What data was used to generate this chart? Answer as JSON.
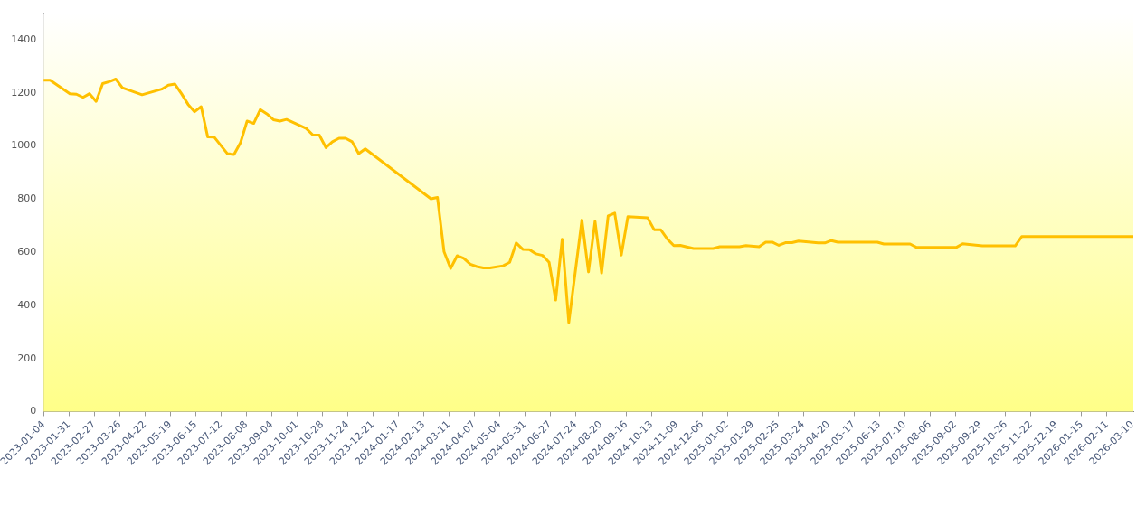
{
  "chart_data": {
    "type": "line",
    "x": [
      "2023-01-04",
      "2023-01-11",
      "2023-02-01",
      "2023-02-08",
      "2023-02-15",
      "2023-02-22",
      "2023-03-01",
      "2023-03-08",
      "2023-03-15",
      "2023-03-22",
      "2023-03-29",
      "2023-04-19",
      "2023-05-10",
      "2023-05-17",
      "2023-05-24",
      "2023-05-31",
      "2023-06-07",
      "2023-06-14",
      "2023-06-21",
      "2023-06-28",
      "2023-07-05",
      "2023-07-19",
      "2023-07-26",
      "2023-08-02",
      "2023-08-09",
      "2023-08-16",
      "2023-08-23",
      "2023-08-30",
      "2023-09-06",
      "2023-09-13",
      "2023-09-20",
      "2023-10-11",
      "2023-10-18",
      "2023-10-25",
      "2023-11-01",
      "2023-11-08",
      "2023-11-15",
      "2023-11-22",
      "2023-11-29",
      "2023-12-06",
      "2023-12-13",
      "2024-02-21",
      "2024-02-28",
      "2024-03-06",
      "2024-03-13",
      "2024-03-20",
      "2024-03-27",
      "2024-04-03",
      "2024-04-10",
      "2024-04-17",
      "2024-04-24",
      "2024-05-08",
      "2024-05-15",
      "2024-05-22",
      "2024-05-29",
      "2024-06-05",
      "2024-06-12",
      "2024-06-19",
      "2024-06-26",
      "2024-07-03",
      "2024-07-10",
      "2024-07-17",
      "2024-07-31",
      "2024-08-07",
      "2024-08-14",
      "2024-08-21",
      "2024-08-28",
      "2024-09-04",
      "2024-09-11",
      "2024-09-18",
      "2024-10-09",
      "2024-10-16",
      "2024-10-23",
      "2024-10-30",
      "2024-11-06",
      "2024-11-13",
      "2024-11-27",
      "2024-12-18",
      "2024-12-25",
      "2025-01-15",
      "2025-01-22",
      "2025-02-05",
      "2025-02-12",
      "2025-02-19",
      "2025-02-26",
      "2025-03-05",
      "2025-03-12",
      "2025-03-19",
      "2025-04-09",
      "2025-04-16",
      "2025-04-23",
      "2025-04-30",
      "2025-06-11",
      "2025-06-18",
      "2025-07-16",
      "2025-07-23",
      "2025-09-03",
      "2025-09-10",
      "2025-10-01",
      "2025-11-05",
      "2025-11-12",
      "2026-03-11"
    ],
    "series": [
      {
        "color": "#ffc000",
        "values": [
          1248,
          1248,
          1197,
          1195,
          1183,
          1197,
          1168,
          1235,
          1242,
          1252,
          1219,
          1193,
          1214,
          1229,
          1233,
          1197,
          1157,
          1129,
          1148,
          1034,
          1033,
          971,
          968,
          1013,
          1094,
          1085,
          1137,
          1121,
          1099,
          1094,
          1100,
          1066,
          1042,
          1041,
          994,
          1016,
          1029,
          1029,
          1016,
          971,
          989,
          801,
          806,
          602,
          539,
          587,
          577,
          555,
          546,
          541,
          541,
          549,
          562,
          635,
          611,
          610,
          594,
          588,
          562,
          420,
          649,
          335,
          721,
          526,
          716,
          522,
          737,
          747,
          589,
          734,
          730,
          685,
          685,
          650,
          625,
          626,
          614,
          614,
          621,
          621,
          625,
          621,
          638,
          638,
          626,
          636,
          636,
          642,
          635,
          635,
          644,
          638,
          638,
          631,
          631,
          618,
          618,
          632,
          624,
          624,
          659,
          659
        ]
      }
    ],
    "xlim": [
      "2023-01-04",
      "2026-03-11"
    ],
    "xticks": [
      "2023-01-04",
      "2023-01-31",
      "2023-02-27",
      "2023-03-26",
      "2023-04-22",
      "2023-05-19",
      "2023-06-15",
      "2023-07-12",
      "2023-08-08",
      "2023-09-04",
      "2023-10-01",
      "2023-10-28",
      "2023-11-24",
      "2023-12-21",
      "2024-01-17",
      "2024-02-13",
      "2024-03-11",
      "2024-04-07",
      "2024-05-04",
      "2024-05-31",
      "2024-06-27",
      "2024-07-24",
      "2024-08-20",
      "2024-09-16",
      "2024-10-13",
      "2024-11-09",
      "2024-12-06",
      "2025-01-02",
      "2025-01-29",
      "2025-02-25",
      "2025-03-24",
      "2025-04-20",
      "2025-05-17",
      "2025-06-13",
      "2025-07-10",
      "2025-08-06",
      "2025-09-02",
      "2025-09-29",
      "2025-10-26",
      "2025-11-22",
      "2025-12-19",
      "2026-01-15",
      "2026-02-11",
      "2026-03-10"
    ],
    "ylim": [
      0,
      1500
    ],
    "yticks": [
      0,
      200,
      400,
      600,
      800,
      1000,
      1200,
      1400
    ],
    "marker": "none",
    "line_style": "solid"
  }
}
